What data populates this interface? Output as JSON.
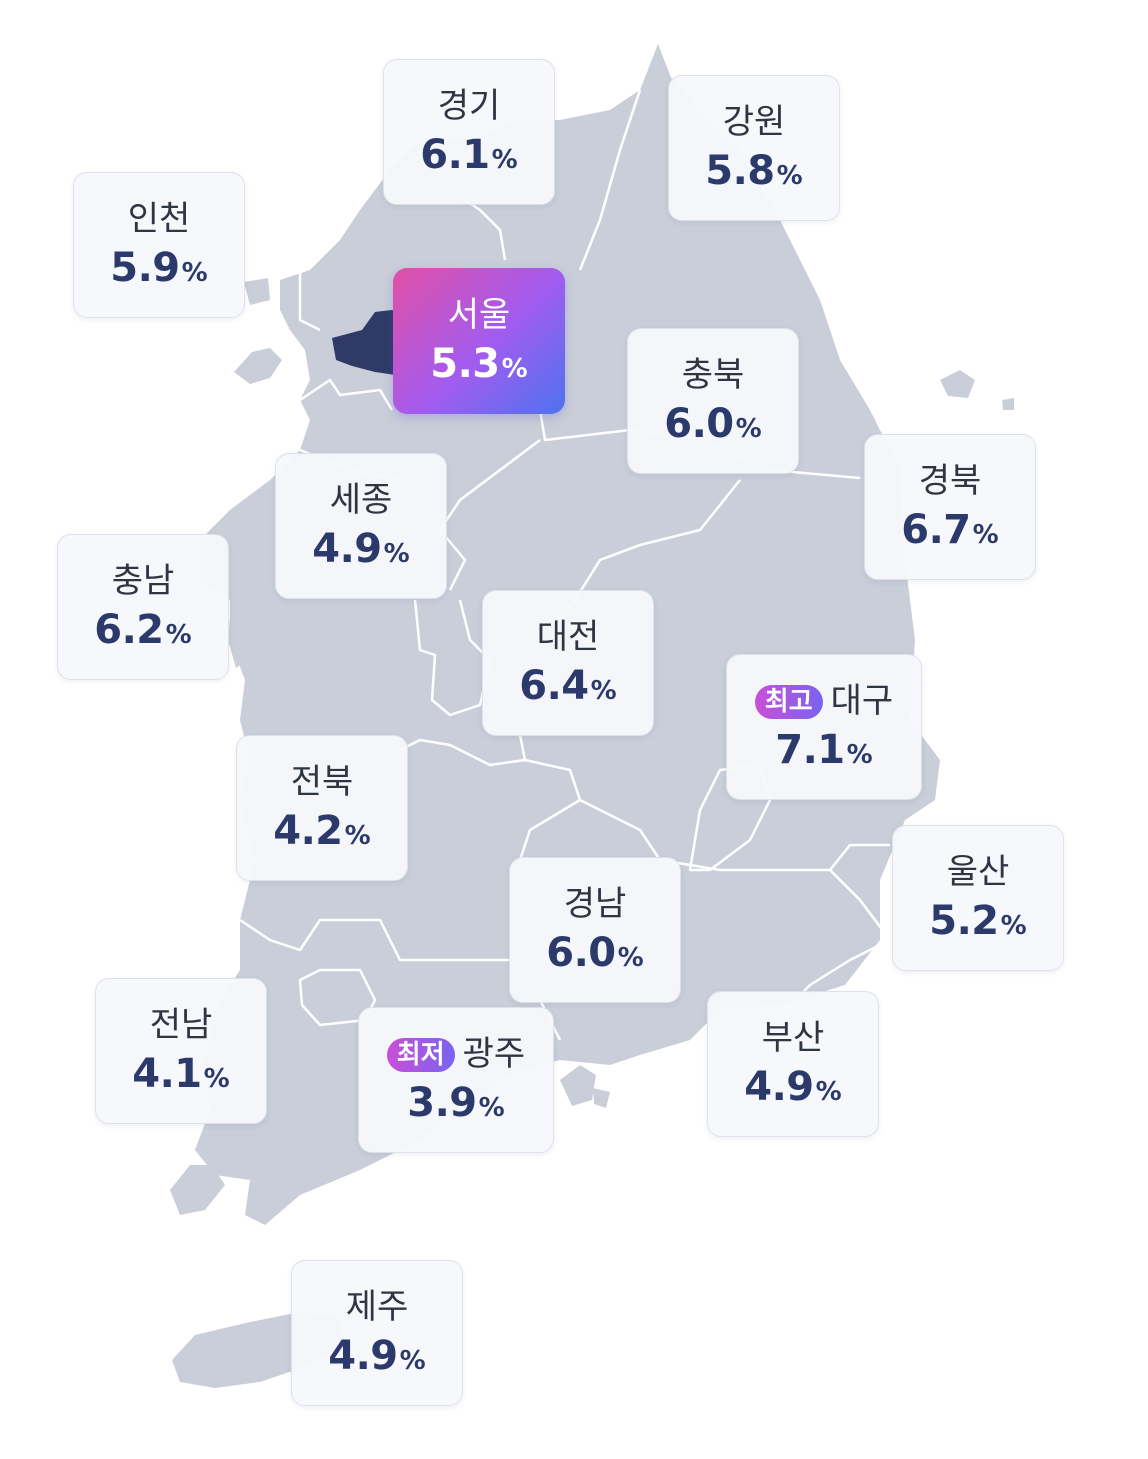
{
  "unit": "%",
  "colors": {
    "land": "#c9ced9",
    "land_border": "#ffffff",
    "selected_region": "#2f3b66",
    "value_text": "#2b3a6b",
    "highlight_gradient": [
      "#e24fa6",
      "#a15cf0",
      "#4d73ee"
    ],
    "badge_high_gradient": [
      "#c94fd8",
      "#7a63f0"
    ],
    "badge_low_gradient": [
      "#c94fd8",
      "#7a63f0"
    ]
  },
  "selected_region": "서울",
  "regions": [
    {
      "id": "gyeonggi",
      "name": "경기",
      "value": "6.1"
    },
    {
      "id": "gangwon",
      "name": "강원",
      "value": "5.8"
    },
    {
      "id": "incheon",
      "name": "인천",
      "value": "5.9"
    },
    {
      "id": "seoul",
      "name": "서울",
      "value": "5.3"
    },
    {
      "id": "chungbuk",
      "name": "충북",
      "value": "6.0"
    },
    {
      "id": "gyeongbuk",
      "name": "경북",
      "value": "6.7"
    },
    {
      "id": "sejong",
      "name": "세종",
      "value": "4.9"
    },
    {
      "id": "chungnam",
      "name": "충남",
      "value": "6.2"
    },
    {
      "id": "daejeon",
      "name": "대전",
      "value": "6.4"
    },
    {
      "id": "daegu",
      "name": "대구",
      "value": "7.1",
      "badge": "최고"
    },
    {
      "id": "jeonbuk",
      "name": "전북",
      "value": "4.2"
    },
    {
      "id": "ulsan",
      "name": "울산",
      "value": "5.2"
    },
    {
      "id": "gyeongnam",
      "name": "경남",
      "value": "6.0"
    },
    {
      "id": "jeonnam",
      "name": "전남",
      "value": "4.1"
    },
    {
      "id": "gwangju",
      "name": "광주",
      "value": "3.9",
      "badge": "최저"
    },
    {
      "id": "busan",
      "name": "부산",
      "value": "4.9"
    },
    {
      "id": "jeju",
      "name": "제주",
      "value": "4.9"
    }
  ]
}
